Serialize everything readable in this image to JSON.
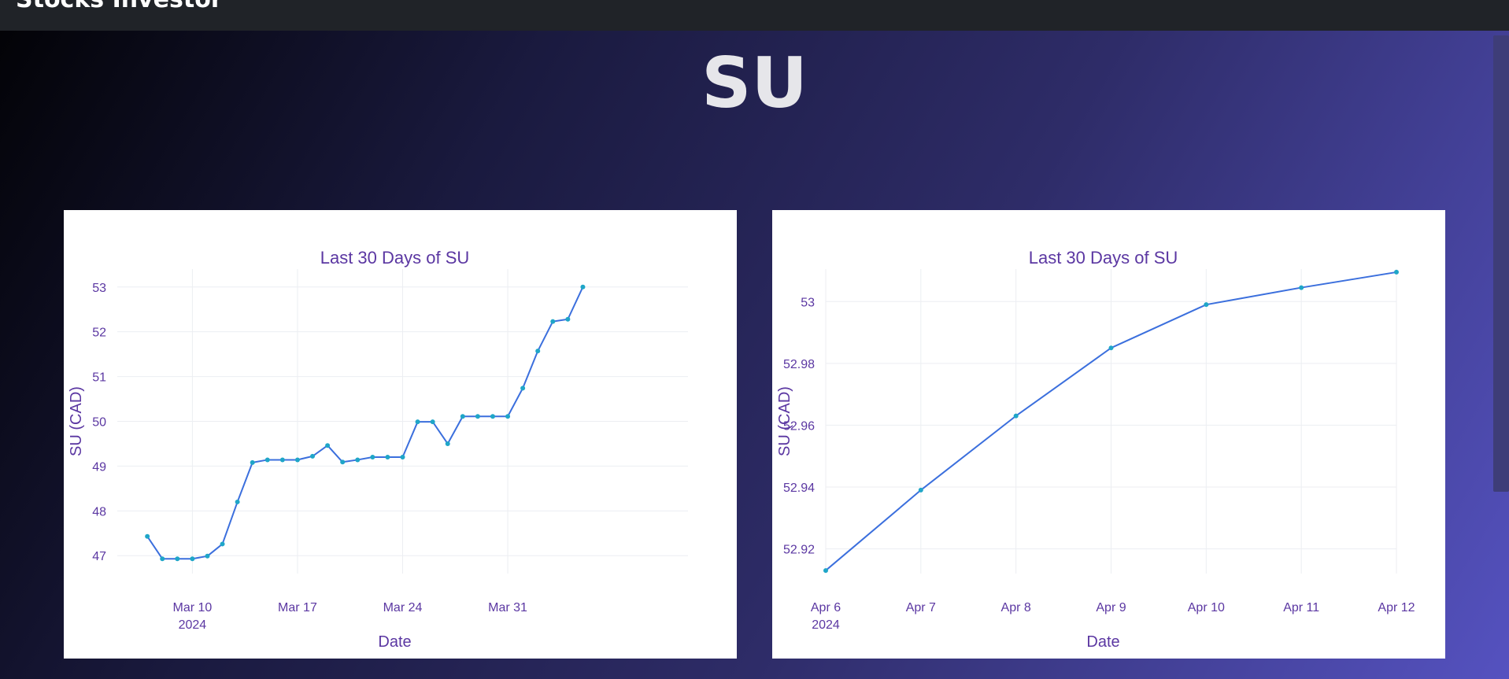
{
  "header": {
    "title": "Stocks Investor"
  },
  "page_title": "SU",
  "colors": {
    "line": "#3b6fdd",
    "marker": "#1fa6c8",
    "text": "#5b37a2",
    "grid": "#eceef2"
  },
  "chart_data": [
    {
      "type": "line",
      "title": "Last 30 Days of SU",
      "xlabel": "Date",
      "ylabel": "SU (CAD)",
      "x_range": [
        "2024-03-05",
        "2024-04-12"
      ],
      "ylim": [
        46.6,
        53.4
      ],
      "yticks": [
        47,
        48,
        49,
        50,
        51,
        52,
        53
      ],
      "xticks": [
        {
          "date": "2024-03-10",
          "label": "Mar 10",
          "sublabel": "2024"
        },
        {
          "date": "2024-03-17",
          "label": "Mar 17",
          "sublabel": ""
        },
        {
          "date": "2024-03-24",
          "label": "Mar 24",
          "sublabel": ""
        },
        {
          "date": "2024-03-31",
          "label": "Mar 31",
          "sublabel": ""
        }
      ],
      "grid": true,
      "series": [
        {
          "x": [
            "2024-03-07",
            "2024-03-08",
            "2024-03-09",
            "2024-03-10",
            "2024-03-11",
            "2024-03-12",
            "2024-03-13",
            "2024-03-14",
            "2024-03-15",
            "2024-03-16",
            "2024-03-17",
            "2024-03-18",
            "2024-03-19",
            "2024-03-20",
            "2024-03-21",
            "2024-03-22",
            "2024-03-23",
            "2024-03-24",
            "2024-03-25",
            "2024-03-26",
            "2024-03-27",
            "2024-03-28",
            "2024-03-29",
            "2024-03-30",
            "2024-03-31",
            "2024-04-01",
            "2024-04-02",
            "2024-04-03",
            "2024-04-04",
            "2024-04-05"
          ],
          "y": [
            47.43,
            46.93,
            46.93,
            46.93,
            46.99,
            47.26,
            48.2,
            49.08,
            49.14,
            49.14,
            49.14,
            49.22,
            49.46,
            49.09,
            49.14,
            49.2,
            49.2,
            49.2,
            49.99,
            49.99,
            49.5,
            50.11,
            50.11,
            50.11,
            50.11,
            50.74,
            51.57,
            52.23,
            52.28,
            53.0
          ]
        }
      ]
    },
    {
      "type": "line",
      "title": "Last 30 Days of SU",
      "xlabel": "Date",
      "ylabel": "SU (CAD)",
      "x_range": [
        "2024-04-06",
        "2024-04-12"
      ],
      "ylim": [
        52.912,
        53.0105
      ],
      "yticks": [
        52.92,
        52.94,
        52.96,
        52.98,
        53
      ],
      "xticks": [
        {
          "date": "2024-04-06",
          "label": "Apr 6",
          "sublabel": "2024"
        },
        {
          "date": "2024-04-07",
          "label": "Apr 7",
          "sublabel": ""
        },
        {
          "date": "2024-04-08",
          "label": "Apr 8",
          "sublabel": ""
        },
        {
          "date": "2024-04-09",
          "label": "Apr 9",
          "sublabel": ""
        },
        {
          "date": "2024-04-10",
          "label": "Apr 10",
          "sublabel": ""
        },
        {
          "date": "2024-04-11",
          "label": "Apr 11",
          "sublabel": ""
        },
        {
          "date": "2024-04-12",
          "label": "Apr 12",
          "sublabel": ""
        }
      ],
      "grid": true,
      "series": [
        {
          "x": [
            "2024-04-06",
            "2024-04-07",
            "2024-04-08",
            "2024-04-09",
            "2024-04-10",
            "2024-04-11",
            "2024-04-12"
          ],
          "y": [
            52.913,
            52.939,
            52.963,
            52.985,
            52.999,
            53.0045,
            53.0095
          ]
        }
      ]
    }
  ]
}
